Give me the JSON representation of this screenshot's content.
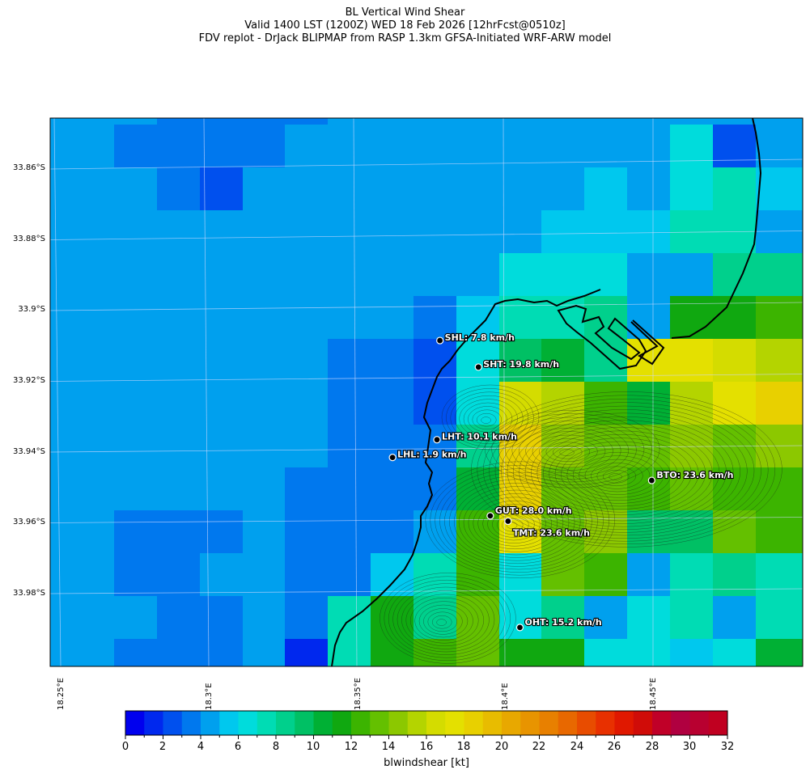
{
  "title_lines": [
    "BL Vertical Wind Shear",
    "Valid 1400 LST (1200Z) WED 18 Feb 2026 [12hrFcst@0510z]",
    "FDV replot - DrJack BLIPMAP from RASP 1.3km GFSA-Initiated WRF-ARW model"
  ],
  "lat_labels": [
    "33.86°S",
    "33.88°S",
    "33.9°S",
    "33.92°S",
    "33.94°S",
    "33.96°S",
    "33.98°S"
  ],
  "lon_labels": [
    "18.25°E",
    "18.3°E",
    "18.35°E",
    "18.4°E",
    "18.45°E"
  ],
  "colorbar": {
    "label": "blwindshear [kt]",
    "ticks": [
      "0",
      "2",
      "4",
      "6",
      "8",
      "10",
      "12",
      "14",
      "16",
      "18",
      "20",
      "22",
      "24",
      "26",
      "28",
      "30",
      "32"
    ],
    "colors": [
      "#0000ee",
      "#0028ee",
      "#0050ee",
      "#0078ee",
      "#00a0ee",
      "#00c8ee",
      "#00dcdc",
      "#00dcb4",
      "#00d08c",
      "#00c064",
      "#00b034",
      "#10a810",
      "#3cb400",
      "#64c000",
      "#8cc800",
      "#b4d400",
      "#d4dc00",
      "#e4e000",
      "#e8d000",
      "#e8bc00",
      "#e8a800",
      "#e89400",
      "#e88000",
      "#e86800",
      "#e84c00",
      "#e83000",
      "#e01800",
      "#d00c08",
      "#c00028",
      "#b00040",
      "#b80030",
      "#c00020"
    ]
  },
  "stations": [
    {
      "label": "SHL: 7.8 km/h",
      "lon": 18.378,
      "lat": -33.908
    },
    {
      "label": "SHT: 19.8 km/h",
      "lon": 18.391,
      "lat": -33.9155
    },
    {
      "label": "LHT: 10.1 km/h",
      "lon": 18.377,
      "lat": -33.936
    },
    {
      "label": "LHL: 1.9 km/h",
      "lon": 18.362,
      "lat": -33.941
    },
    {
      "label": "BTO: 23.6 km/h",
      "lon": 18.4495,
      "lat": -33.9475
    },
    {
      "label": "GUT: 28.0 km/h",
      "lon": 18.395,
      "lat": -33.9575
    },
    {
      "label": "TMT: 23.6 km/h",
      "lon": 18.401,
      "lat": -33.959
    },
    {
      "label": "OHT: 15.2 km/h",
      "lon": 18.405,
      "lat": -33.989
    }
  ]
}
